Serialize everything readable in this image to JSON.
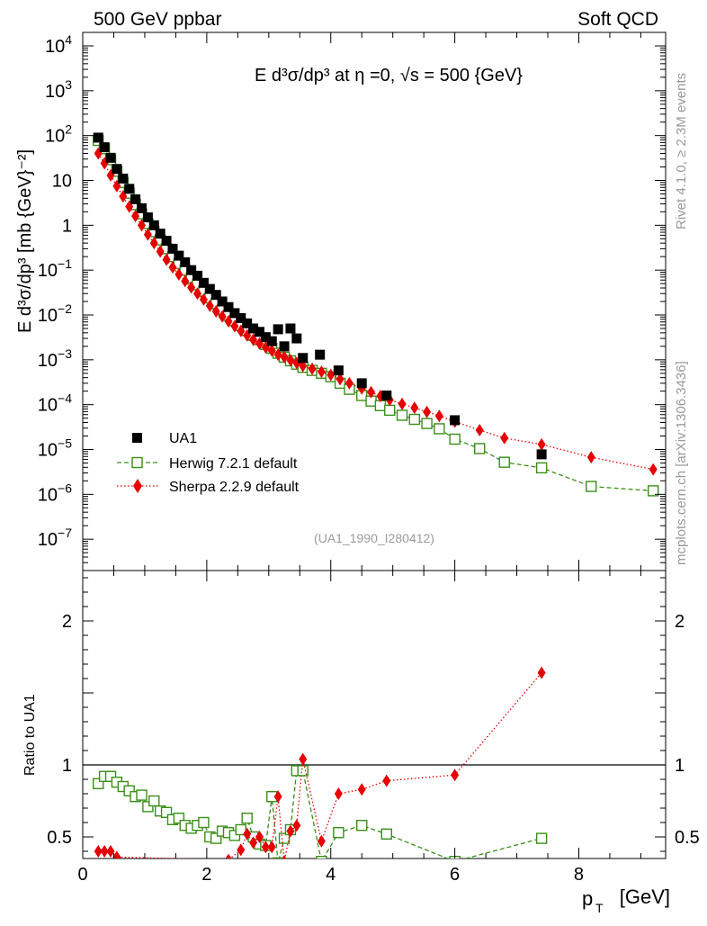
{
  "header": {
    "left": "500 GeV ppbar",
    "right": "Soft QCD"
  },
  "side_labels": {
    "top": "Rivet 4.1.0, ≥ 2.3M events",
    "bottom": "mcplots.cern.ch [arXiv:1306.3436]"
  },
  "chart_data": [
    {
      "type": "scatter",
      "panel": "main",
      "title": "E d³σ/dp³ at η =0, √s = 500 {GeV}",
      "ylabel": "E d³σ/dp³ [mb {GeV}⁻²]",
      "xlabel": "",
      "yscale": "log",
      "xlim": [
        0,
        9.4
      ],
      "ylim": [
        2e-08,
        20000.0
      ],
      "xticks": [
        0,
        2,
        4,
        6,
        8
      ],
      "yticks": [
        {
          "v": 10000.0,
          "t": "10",
          "e": "4"
        },
        {
          "v": 1000.0,
          "t": "10",
          "e": "3"
        },
        {
          "v": 100.0,
          "t": "10",
          "e": "2"
        },
        {
          "v": 10,
          "t": "10",
          "e": ""
        },
        {
          "v": 1,
          "t": "1",
          "e": ""
        },
        {
          "v": 0.1,
          "t": "10",
          "e": "−1"
        },
        {
          "v": 0.01,
          "t": "10",
          "e": "−2"
        },
        {
          "v": 0.001,
          "t": "10",
          "e": "−3"
        },
        {
          "v": 0.0001,
          "t": "10",
          "e": "−4"
        },
        {
          "v": 1e-05,
          "t": "10",
          "e": "−5"
        },
        {
          "v": 1e-06,
          "t": "10",
          "e": "−6"
        },
        {
          "v": 1e-07,
          "t": "10",
          "e": "−7"
        }
      ],
      "annotation": "(UA1_1990_I280412)",
      "series": [
        {
          "name": "UA1",
          "color": "#000000",
          "marker": "filled-square",
          "x": [
            0.25,
            0.35,
            0.45,
            0.55,
            0.65,
            0.75,
            0.85,
            0.95,
            1.05,
            1.15,
            1.25,
            1.35,
            1.45,
            1.55,
            1.65,
            1.75,
            1.85,
            1.95,
            2.05,
            2.15,
            2.25,
            2.35,
            2.45,
            2.55,
            2.65,
            2.75,
            2.85,
            2.95,
            3.05,
            3.15,
            3.25,
            3.35,
            3.45,
            3.55,
            3.825,
            4.125,
            4.5,
            4.9,
            6.0,
            7.4
          ],
          "y": [
            90,
            55,
            32,
            18,
            11,
            6.5,
            3.8,
            2.4,
            1.5,
            1.0,
            0.65,
            0.45,
            0.3,
            0.21,
            0.15,
            0.1,
            0.075,
            0.052,
            0.038,
            0.028,
            0.02,
            0.015,
            0.011,
            0.0085,
            0.0065,
            0.005,
            0.0042,
            0.0032,
            0.0026,
            0.0048,
            0.002,
            0.005,
            0.003,
            0.0011,
            0.0013,
            0.00058,
            0.0003,
            0.00016,
            4.5e-05,
            7.8e-06
          ]
        },
        {
          "name": "Herwig 7.2.1 default",
          "color": "#3a8f18",
          "marker": "open-square",
          "line": "dashed",
          "x": [
            0.25,
            0.35,
            0.45,
            0.55,
            0.65,
            0.75,
            0.85,
            0.95,
            1.05,
            1.15,
            1.25,
            1.35,
            1.45,
            1.55,
            1.65,
            1.75,
            1.85,
            1.95,
            2.05,
            2.15,
            2.25,
            2.35,
            2.45,
            2.55,
            2.65,
            2.75,
            2.85,
            2.95,
            3.05,
            3.15,
            3.25,
            3.35,
            3.45,
            3.55,
            3.7,
            3.85,
            4.0,
            4.15,
            4.3,
            4.5,
            4.65,
            4.8,
            4.95,
            5.15,
            5.35,
            5.55,
            5.75,
            6.0,
            6.4,
            6.8,
            7.4,
            8.2,
            9.2
          ],
          "y": [
            78,
            51,
            29,
            16,
            9.0,
            5.2,
            2.9,
            1.8,
            1.1,
            0.72,
            0.47,
            0.3,
            0.2,
            0.14,
            0.1,
            0.067,
            0.047,
            0.034,
            0.024,
            0.018,
            0.013,
            0.0098,
            0.0075,
            0.0058,
            0.0045,
            0.0035,
            0.0028,
            0.0022,
            0.0018,
            0.0014,
            0.00115,
            0.00095,
            0.0008,
            0.00068,
            0.00058,
            0.0005,
            0.00042,
            0.0003,
            0.00022,
            0.00016,
            0.00012,
            9.5e-05,
            7.5e-05,
            5.8e-05,
            4.7e-05,
            3.8e-05,
            2.9e-05,
            1.7e-05,
            1.05e-05,
            5.2e-06,
            3.9e-06,
            1.5e-06,
            1.2e-06
          ]
        },
        {
          "name": "Sherpa 2.2.9 default",
          "color": "#e60000",
          "marker": "diamond",
          "line": "dotted",
          "x": [
            0.25,
            0.35,
            0.45,
            0.55,
            0.65,
            0.75,
            0.85,
            0.95,
            1.05,
            1.15,
            1.25,
            1.35,
            1.45,
            1.55,
            1.65,
            1.75,
            1.85,
            1.95,
            2.05,
            2.15,
            2.25,
            2.35,
            2.45,
            2.55,
            2.65,
            2.75,
            2.85,
            2.95,
            3.05,
            3.15,
            3.25,
            3.35,
            3.45,
            3.55,
            3.7,
            3.85,
            4.0,
            4.15,
            4.3,
            4.5,
            4.65,
            4.8,
            4.95,
            5.15,
            5.35,
            5.55,
            5.75,
            6.0,
            6.4,
            6.8,
            7.4,
            8.2,
            9.2
          ],
          "y": [
            40,
            24,
            13,
            7.5,
            4.4,
            2.6,
            1.6,
            1.0,
            0.62,
            0.4,
            0.26,
            0.17,
            0.115,
            0.08,
            0.057,
            0.041,
            0.03,
            0.022,
            0.016,
            0.012,
            0.0093,
            0.0072,
            0.0056,
            0.0044,
            0.0035,
            0.0028,
            0.0023,
            0.0019,
            0.0016,
            0.0013,
            0.00115,
            0.00098,
            0.00085,
            0.00073,
            0.00063,
            0.00054,
            0.00046,
            0.00037,
            0.0003,
            0.00023,
            0.00019,
            0.000155,
            0.000128,
            0.000104,
            8.5e-05,
            6.9e-05,
            5.6e-05,
            4.2e-05,
            2.7e-05,
            1.8e-05,
            1.3e-05,
            6.7e-06,
            3.6e-06
          ]
        }
      ]
    },
    {
      "type": "scatter",
      "panel": "ratio",
      "ylabel": "Ratio to UA1",
      "xlabel": "p_T [GeV]",
      "xlabel_main": "p",
      "xlabel_sub": "T",
      "xlabel_unit": "[GeV]",
      "xlim": [
        0,
        9.4
      ],
      "ylim": [
        0.35,
        2.35
      ],
      "xticks": [
        0,
        2,
        4,
        6,
        8
      ],
      "yticks": [
        0.5,
        1,
        2
      ],
      "reference_line": 1.0,
      "series": [
        {
          "name": "Herwig 7.2.1 default",
          "color": "#3a8f18",
          "marker": "open-square",
          "line": "dashed",
          "x": [
            0.25,
            0.35,
            0.45,
            0.55,
            0.65,
            0.75,
            0.85,
            0.95,
            1.05,
            1.15,
            1.25,
            1.35,
            1.45,
            1.55,
            1.65,
            1.75,
            1.85,
            1.95,
            2.05,
            2.15,
            2.25,
            2.35,
            2.45,
            2.55,
            2.65,
            2.75,
            2.85,
            2.95,
            3.05,
            3.15,
            3.25,
            3.35,
            3.45,
            3.55,
            3.85,
            4.125,
            4.5,
            4.9,
            6.0,
            7.4
          ],
          "y": [
            0.87,
            0.92,
            0.92,
            0.88,
            0.85,
            0.82,
            0.78,
            0.79,
            0.71,
            0.75,
            0.68,
            0.67,
            0.62,
            0.63,
            0.58,
            0.56,
            0.58,
            0.6,
            0.5,
            0.49,
            0.54,
            0.53,
            0.51,
            0.55,
            0.63,
            0.5,
            0.45,
            0.44,
            0.78,
            0.32,
            0.49,
            0.55,
            0.96,
            0.96,
            0.33,
            0.53,
            0.58,
            0.52,
            0.33,
            0.49
          ]
        },
        {
          "name": "Sherpa 2.2.9 default",
          "color": "#e60000",
          "marker": "diamond",
          "line": "dotted",
          "x": [
            0.25,
            0.35,
            0.45,
            0.55,
            2.35,
            2.55,
            2.65,
            2.75,
            2.85,
            2.95,
            3.05,
            3.15,
            3.25,
            3.35,
            3.45,
            3.55,
            3.85,
            4.125,
            4.5,
            4.9,
            6.0,
            7.4
          ],
          "y": [
            0.4,
            0.4,
            0.4,
            0.36,
            0.34,
            0.41,
            0.52,
            0.46,
            0.5,
            0.43,
            0.43,
            0.78,
            0.33,
            0.54,
            0.58,
            1.04,
            0.47,
            0.8,
            0.83,
            0.89,
            0.93,
            1.64
          ]
        }
      ]
    }
  ]
}
